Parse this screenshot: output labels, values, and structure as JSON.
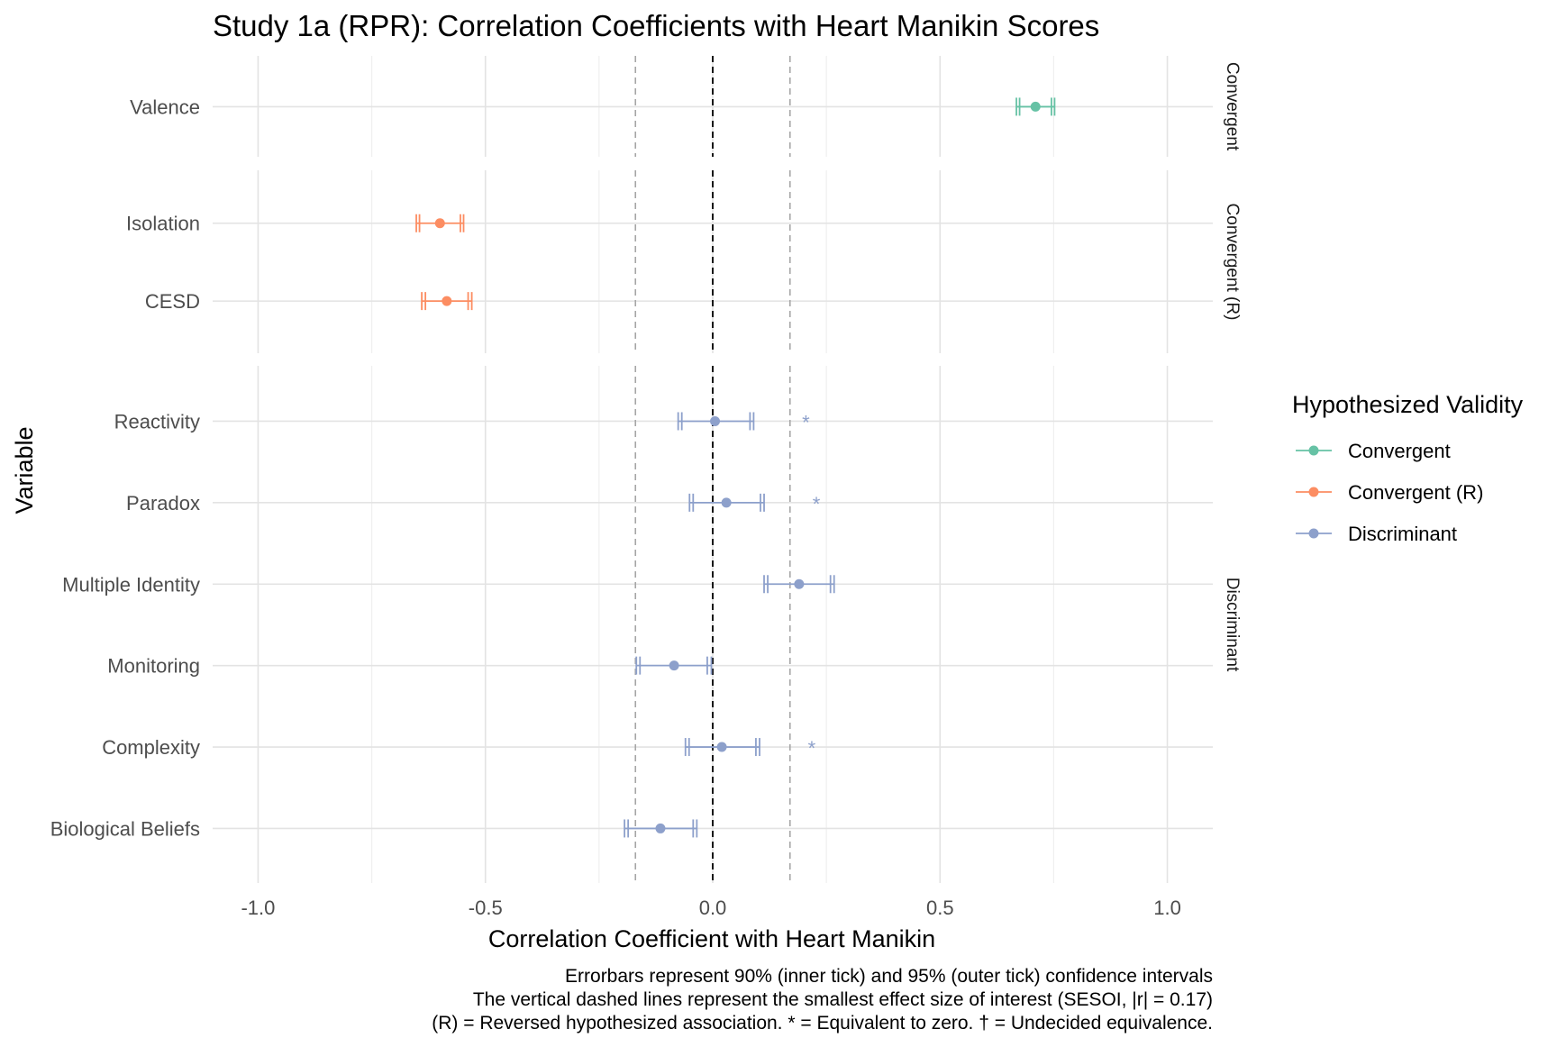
{
  "chart_data": {
    "type": "scatter",
    "title": "Study 1a (RPR): Correlation Coefficients with Heart Manikin Scores",
    "xlabel": "Correlation Coefficient with Heart Manikin",
    "ylabel": "Variable",
    "xlim": [
      -1.1,
      1.1
    ],
    "xticks": [
      -1.0,
      -0.5,
      0.0,
      0.5,
      1.0
    ],
    "xtick_labels": [
      "-1.0",
      "-0.5",
      "0.0",
      "0.5",
      "1.0"
    ],
    "reference_line": 0.0,
    "sesoi": 0.17,
    "grid": true,
    "legend": {
      "title": "Hypothesized Validity",
      "placement": "right",
      "entries": [
        {
          "name": "Convergent",
          "color": "#66c2a5"
        },
        {
          "name": "Convergent (R)",
          "color": "#fc8d62"
        },
        {
          "name": "Discriminant",
          "color": "#8da0cb"
        }
      ]
    },
    "panels": [
      {
        "strip": "Convergent",
        "color": "#66c2a5",
        "rows": [
          {
            "label": "Valence",
            "r": 0.71,
            "ci90": [
              0.675,
              0.745
            ],
            "ci95": [
              0.668,
              0.752
            ],
            "marker": ""
          }
        ]
      },
      {
        "strip": "Convergent (R)",
        "color": "#fc8d62",
        "rows": [
          {
            "label": "Isolation",
            "r": -0.6,
            "ci90": [
              -0.645,
              -0.555
            ],
            "ci95": [
              -0.652,
              -0.548
            ],
            "marker": ""
          },
          {
            "label": "CESD",
            "r": -0.585,
            "ci90": [
              -0.632,
              -0.538
            ],
            "ci95": [
              -0.64,
              -0.53
            ],
            "marker": ""
          }
        ]
      },
      {
        "strip": "Discriminant",
        "color": "#8da0cb",
        "rows": [
          {
            "label": "Reactivity",
            "r": 0.005,
            "ci90": [
              -0.068,
              0.082
            ],
            "ci95": [
              -0.076,
              0.09
            ],
            "marker": "*"
          },
          {
            "label": "Paradox",
            "r": 0.03,
            "ci90": [
              -0.043,
              0.105
            ],
            "ci95": [
              -0.051,
              0.113
            ],
            "marker": "*"
          },
          {
            "label": "Multiple Identity",
            "r": 0.19,
            "ci90": [
              0.121,
              0.259
            ],
            "ci95": [
              0.113,
              0.267
            ],
            "marker": ""
          },
          {
            "label": "Monitoring",
            "r": -0.085,
            "ci90": [
              -0.16,
              -0.012
            ],
            "ci95": [
              -0.168,
              -0.003
            ],
            "marker": ""
          },
          {
            "label": "Complexity",
            "r": 0.02,
            "ci90": [
              -0.052,
              0.095
            ],
            "ci95": [
              -0.06,
              0.103
            ],
            "marker": "*"
          },
          {
            "label": "Biological Beliefs",
            "r": -0.115,
            "ci90": [
              -0.186,
              -0.043
            ],
            "ci95": [
              -0.194,
              -0.035
            ],
            "marker": ""
          }
        ]
      }
    ],
    "caption": [
      "Errorbars represent 90% (inner tick) and 95% (outer tick) confidence intervals",
      "The vertical dashed lines represent the smallest effect size of interest (SESOI, |r| = 0.17)",
      "(R) = Reversed hypothesized association. * = Equivalent to zero. † = Undecided equivalence."
    ]
  }
}
